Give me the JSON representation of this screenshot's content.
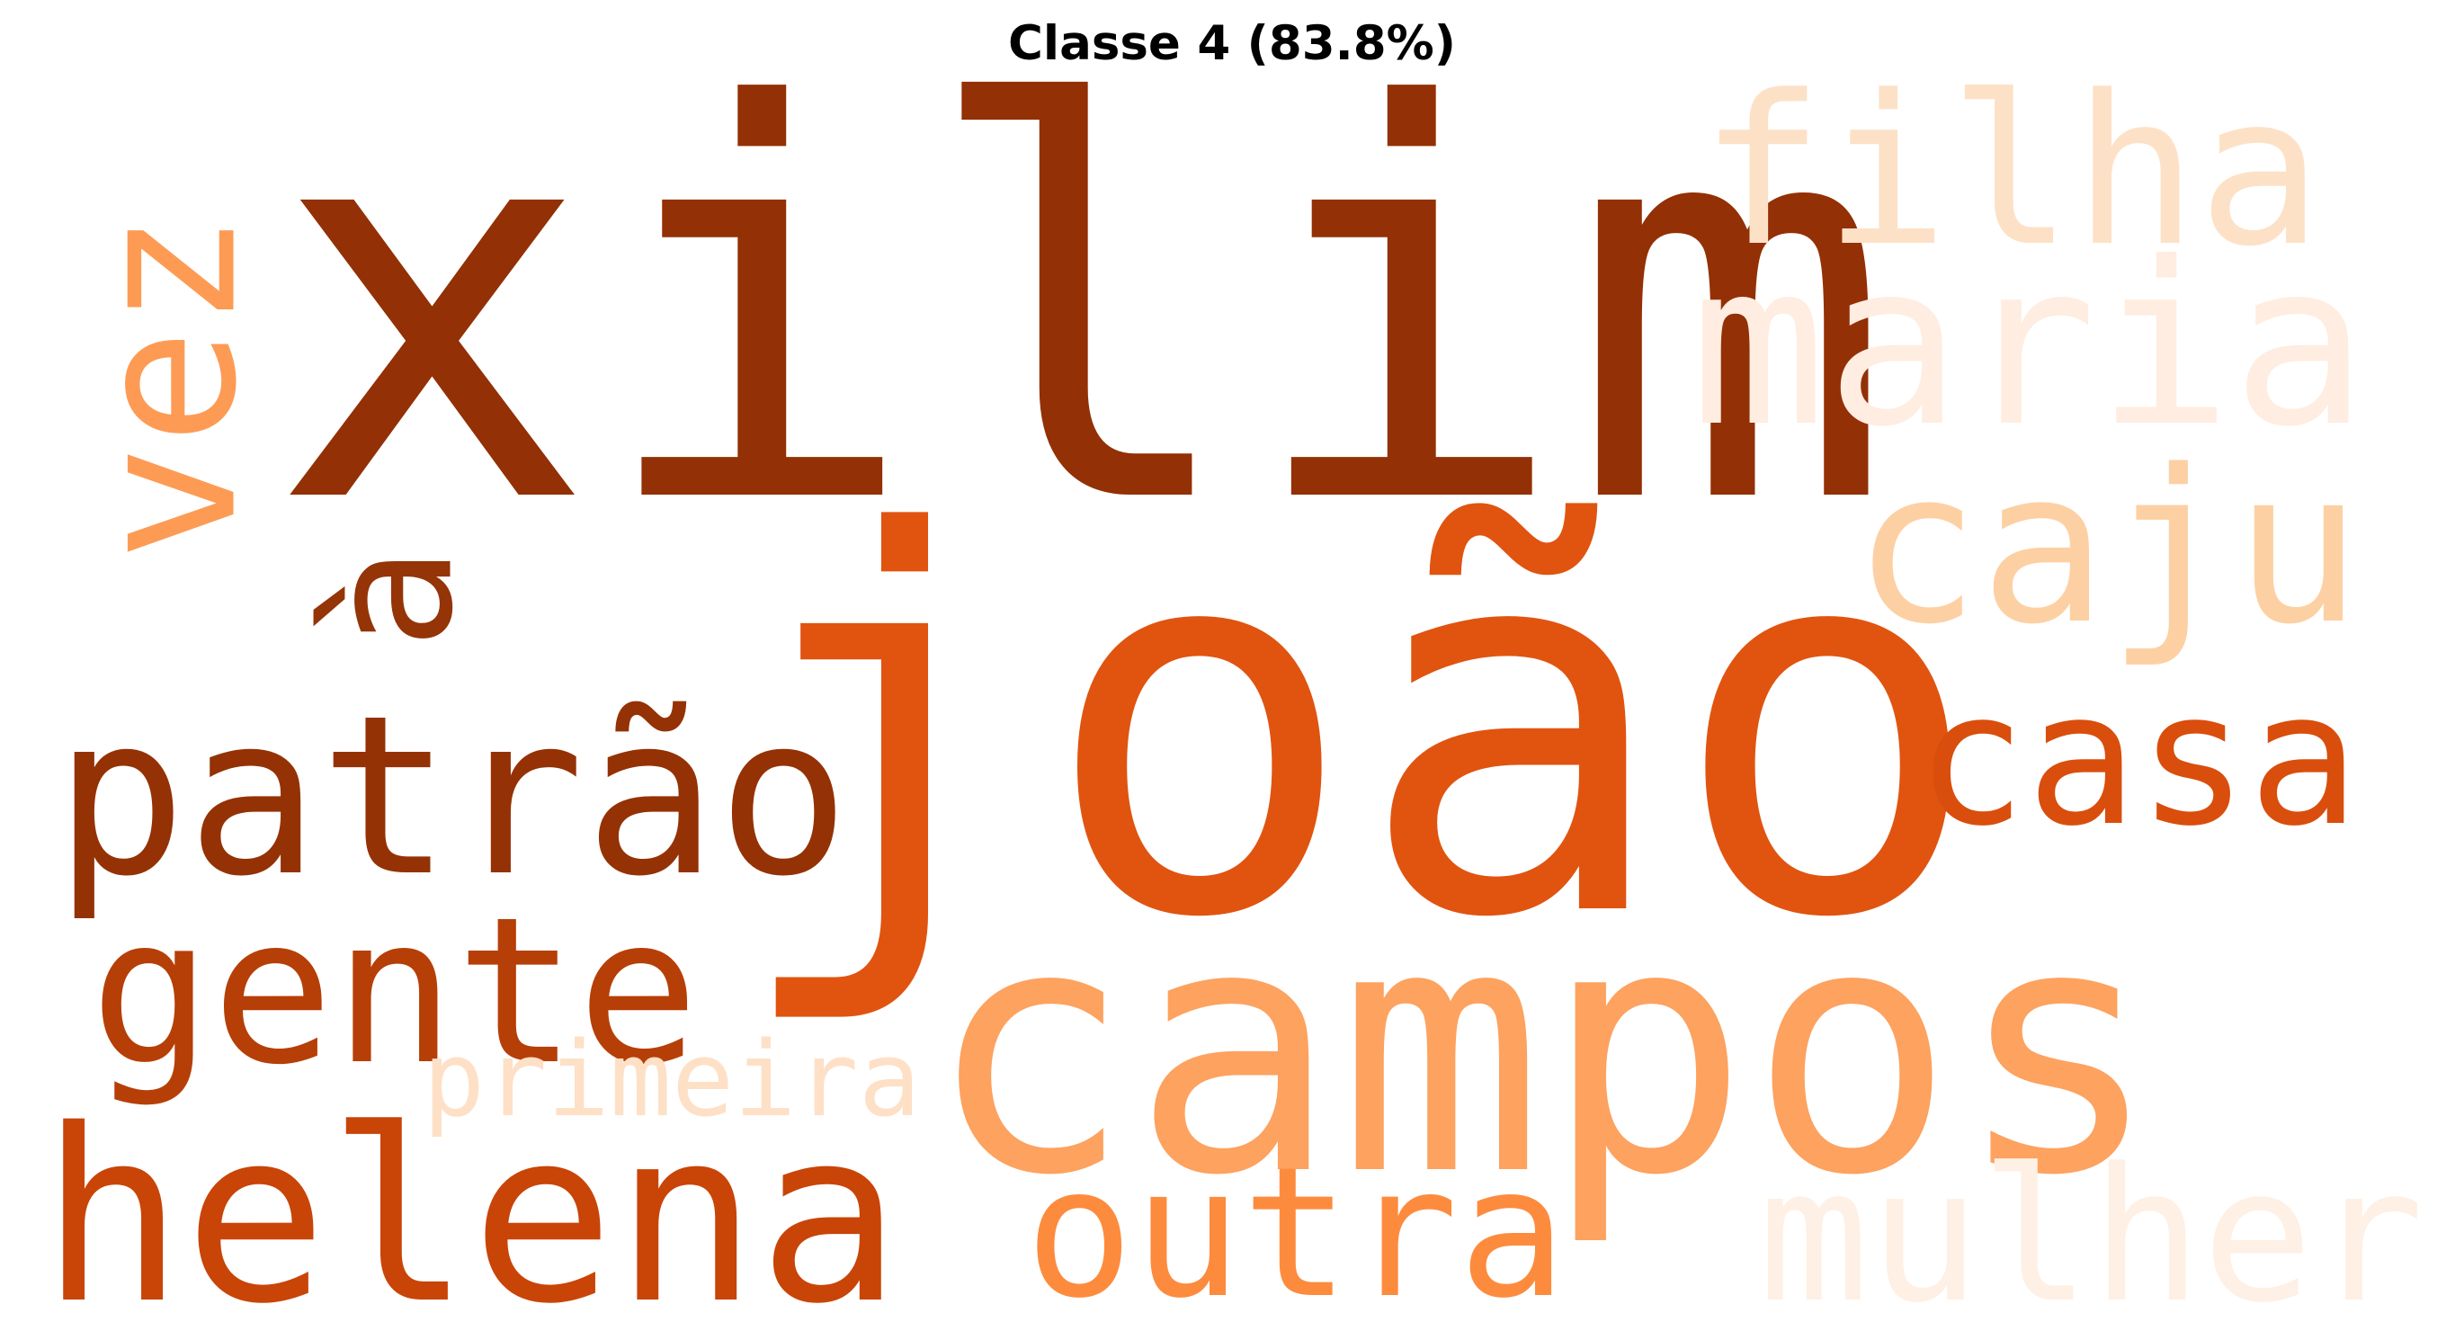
{
  "chart_data": {
    "type": "wordcloud",
    "title": "Classe 4 (83.8%)",
    "palette": "Oranges",
    "words": [
      {
        "text": "xilim",
        "weight": 1.0,
        "color": "#933005",
        "rotated": false
      },
      {
        "text": "joão",
        "weight": 0.95,
        "color": "#e05410",
        "rotated": false
      },
      {
        "text": "campos",
        "weight": 0.88,
        "color": "#fda25f",
        "rotated": false
      },
      {
        "text": "patrão",
        "weight": 0.52,
        "color": "#943205",
        "rotated": false
      },
      {
        "text": "helena",
        "weight": 0.5,
        "color": "#c94407",
        "rotated": false
      },
      {
        "text": "maria",
        "weight": 0.45,
        "color": "#feede0",
        "rotated": false
      },
      {
        "text": "gente",
        "weight": 0.44,
        "color": "#b63f07",
        "rotated": false
      },
      {
        "text": "caju",
        "weight": 0.42,
        "color": "#fdd0a3",
        "rotated": false
      },
      {
        "text": "filha",
        "weight": 0.4,
        "color": "#fde1c7",
        "rotated": false
      },
      {
        "text": "vez",
        "weight": 0.38,
        "color": "#fd9b55",
        "rotated": true
      },
      {
        "text": "casa",
        "weight": 0.37,
        "color": "#d94e0c",
        "rotated": false
      },
      {
        "text": "outra",
        "weight": 0.35,
        "color": "#fd8b3e",
        "rotated": false
      },
      {
        "text": "mulher",
        "weight": 0.34,
        "color": "#fef0e4",
        "rotated": false
      },
      {
        "text": "à",
        "weight": 0.3,
        "color": "#943407",
        "rotated": true
      },
      {
        "text": "primeira",
        "weight": 0.2,
        "color": "#fee0c7",
        "rotated": false
      }
    ]
  }
}
